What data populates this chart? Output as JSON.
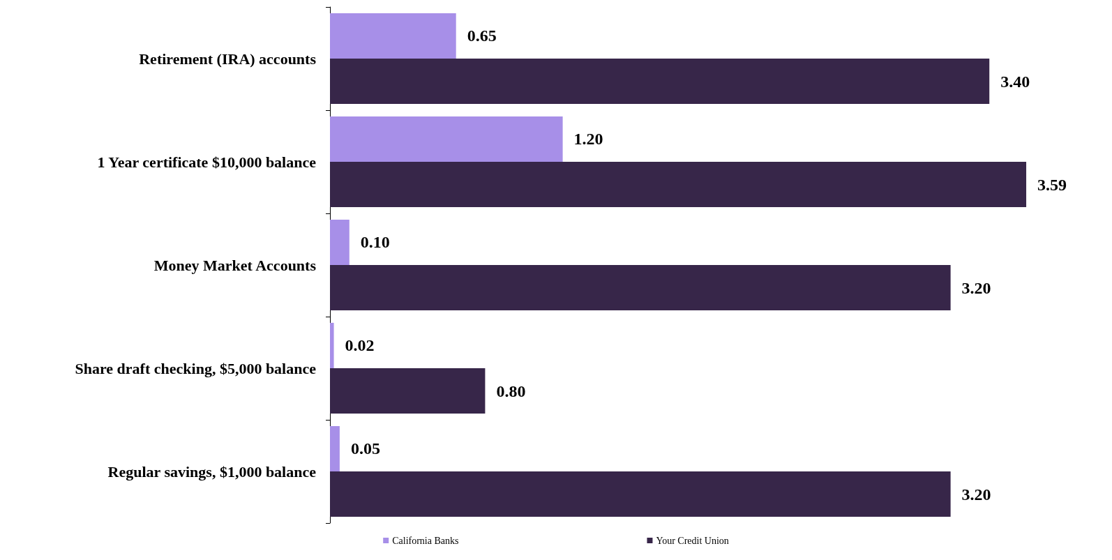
{
  "chart_data": {
    "type": "bar",
    "orientation": "horizontal",
    "categories": [
      "Retirement (IRA) accounts",
      "1 Year certificate $10,000 balance",
      "Money Market Accounts",
      "Share draft checking, $5,000 balance",
      "Regular savings, $1,000 balance"
    ],
    "series": [
      {
        "name": "California Banks",
        "color": "#a78fe8",
        "values": [
          0.65,
          1.2,
          0.1,
          0.02,
          0.05
        ],
        "value_labels": [
          "0.65",
          "1.20",
          "0.10",
          "0.02",
          "0.05"
        ]
      },
      {
        "name": "Your Credit Union",
        "color": "#372649",
        "values": [
          3.4,
          3.59,
          3.2,
          0.8,
          3.2
        ],
        "value_labels": [
          "3.40",
          "3.59",
          "3.20",
          "0.80",
          "3.20"
        ]
      }
    ],
    "legend": "bottom",
    "grid": false,
    "tick_labels": "y"
  }
}
